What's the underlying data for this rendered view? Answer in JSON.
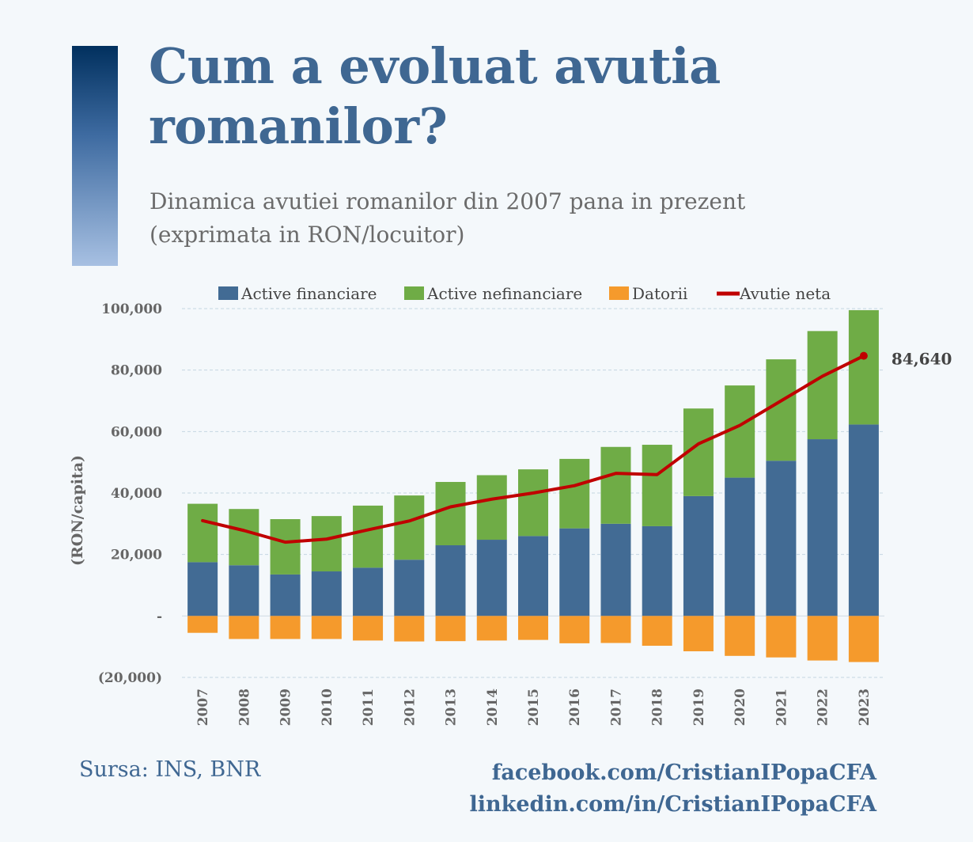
{
  "header": {
    "title": "Cum a evoluat avutia romanilor?",
    "subtitle_line1": "Dinamica avutiei romanilor din 2007 pana in prezent",
    "subtitle_line2": "(exprimata in RON/locuitor)"
  },
  "footer": {
    "source": "Sursa: INS, BNR",
    "facebook": "facebook.com/CristianIPopaCFA",
    "linkedin": "linkedin.com/in/CristianIPopaCFA"
  },
  "colors": {
    "financial": "#426b94",
    "nonfinancial": "#6fac46",
    "debt": "#f59a2c",
    "net": "#c00000",
    "grid": "#c5d6e2",
    "accent": "#3f6792"
  },
  "chart_data": {
    "type": "bar",
    "stacked": true,
    "categories": [
      "2007",
      "2008",
      "2009",
      "2010",
      "2011",
      "2012",
      "2013",
      "2014",
      "2015",
      "2016",
      "2017",
      "2018",
      "2019",
      "2020",
      "2021",
      "2022",
      "2023"
    ],
    "series": [
      {
        "name": "Active financiare",
        "kind": "bar",
        "values": [
          17500,
          16500,
          13500,
          14500,
          15700,
          18300,
          23000,
          24800,
          26000,
          28500,
          30000,
          29200,
          39000,
          45000,
          50500,
          57500,
          62300
        ]
      },
      {
        "name": "Active nefinanciare",
        "kind": "bar",
        "values": [
          19000,
          18300,
          18000,
          18000,
          20200,
          20900,
          20600,
          21000,
          21700,
          22600,
          25000,
          26500,
          28500,
          30000,
          33000,
          35200,
          37200
        ]
      },
      {
        "name": "Datorii",
        "kind": "bar",
        "values": [
          -5500,
          -7500,
          -7500,
          -7500,
          -8000,
          -8300,
          -8200,
          -8000,
          -7800,
          -8900,
          -8800,
          -9700,
          -11500,
          -13000,
          -13500,
          -14500,
          -15000
        ]
      },
      {
        "name": "Avutie neta",
        "kind": "line",
        "values": [
          31000,
          27800,
          24000,
          25000,
          28000,
          30900,
          35500,
          38000,
          40000,
          42400,
          46400,
          46000,
          56000,
          62000,
          70000,
          78000,
          84640
        ]
      }
    ],
    "y_ticks": [
      {
        "value": 100000,
        "label": "100,000"
      },
      {
        "value": 80000,
        "label": "80,000"
      },
      {
        "value": 60000,
        "label": "60,000"
      },
      {
        "value": 40000,
        "label": "40,000"
      },
      {
        "value": 20000,
        "label": "20,000"
      },
      {
        "value": 0,
        "label": "-"
      },
      {
        "value": -20000,
        "label": "(20,000)"
      }
    ],
    "ylim": [
      -20000,
      100000
    ],
    "ylabel": "(RON/capita)",
    "xlabel": "",
    "grid": true,
    "legend_position": "top",
    "annotation": {
      "index": 16,
      "label": "84,640"
    }
  }
}
